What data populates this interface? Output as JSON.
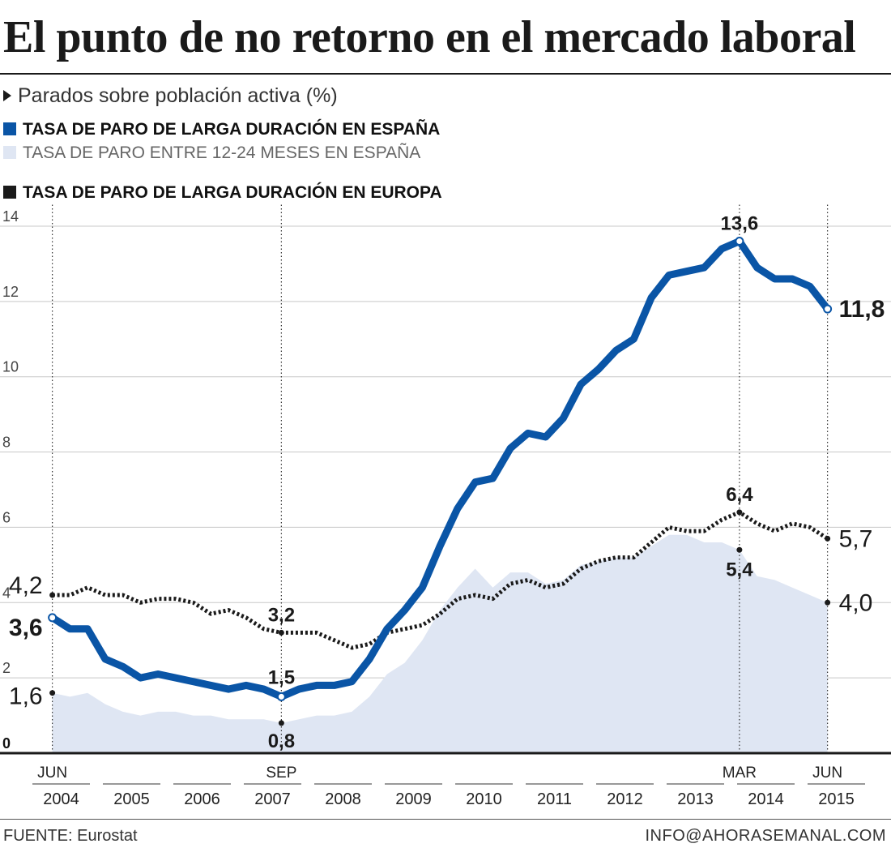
{
  "header": {
    "title": "El punto de no retorno en el mercado laboral",
    "subtitle": "Parados sobre población activa (%)"
  },
  "legend": [
    {
      "label": "TASA DE PARO DE LARGA DURACIÓN EN ESPAÑA",
      "color": "#0a55a6",
      "style": "bold"
    },
    {
      "label": "TASA DE PARO ENTRE 12-24 MESES EN ESPAÑA",
      "color": "#dfe6f3",
      "style": "light"
    },
    {
      "label": "TASA DE PARO DE LARGA DURACIÓN EN EUROPA",
      "color": "#1a1a1a",
      "style": "bold"
    }
  ],
  "footer": {
    "source": "FUENTE: Eurostat",
    "contact": "INFO@AHORASEMANAL.COM"
  },
  "chart_data": {
    "type": "line",
    "y_ticks": [
      "0",
      "2",
      "4",
      "6",
      "8",
      "10",
      "12",
      "14"
    ],
    "ylim": [
      0,
      14
    ],
    "grid": true,
    "x_range": [
      "2004-Q1",
      "2015-Q4"
    ],
    "years": [
      "2004",
      "2005",
      "2006",
      "2007",
      "2008",
      "2009",
      "2010",
      "2011",
      "2012",
      "2013",
      "2014",
      "2015"
    ],
    "month_markers": [
      {
        "label": "JUN",
        "x": "2004-Q2"
      },
      {
        "label": "SEP",
        "x": "2007-Q3"
      },
      {
        "label": "MAR",
        "x": "2014-Q1"
      },
      {
        "label": "JUN",
        "x": "2015-Q2"
      }
    ],
    "series": [
      {
        "key": "spain_long",
        "color": "#0a55a6",
        "style": "solid",
        "x": [
          "2004-Q2",
          "2004-Q3",
          "2004-Q4",
          "2005-Q1",
          "2005-Q2",
          "2005-Q3",
          "2005-Q4",
          "2006-Q1",
          "2006-Q2",
          "2006-Q3",
          "2006-Q4",
          "2007-Q1",
          "2007-Q2",
          "2007-Q3",
          "2007-Q4",
          "2008-Q1",
          "2008-Q2",
          "2008-Q3",
          "2008-Q4",
          "2009-Q1",
          "2009-Q2",
          "2009-Q3",
          "2009-Q4",
          "2010-Q1",
          "2010-Q2",
          "2010-Q3",
          "2010-Q4",
          "2011-Q1",
          "2011-Q2",
          "2011-Q3",
          "2011-Q4",
          "2012-Q1",
          "2012-Q2",
          "2012-Q3",
          "2012-Q4",
          "2013-Q1",
          "2013-Q2",
          "2013-Q3",
          "2013-Q4",
          "2014-Q1",
          "2014-Q2",
          "2014-Q3",
          "2014-Q4",
          "2015-Q1",
          "2015-Q2"
        ],
        "values": [
          3.6,
          3.3,
          3.3,
          2.5,
          2.3,
          2.0,
          2.1,
          2.0,
          1.9,
          1.8,
          1.7,
          1.8,
          1.7,
          1.5,
          1.7,
          1.8,
          1.8,
          1.9,
          2.5,
          3.3,
          3.8,
          4.4,
          5.5,
          6.5,
          7.2,
          7.3,
          8.1,
          8.5,
          8.4,
          8.9,
          9.8,
          10.2,
          10.7,
          11.0,
          12.1,
          12.7,
          12.8,
          12.9,
          13.4,
          13.6,
          12.9,
          12.6,
          12.6,
          12.4,
          11.8
        ]
      },
      {
        "key": "spain_12_24",
        "color": "#dfe6f3",
        "style": "area",
        "x": [
          "2004-Q2",
          "2004-Q3",
          "2004-Q4",
          "2005-Q1",
          "2005-Q2",
          "2005-Q3",
          "2005-Q4",
          "2006-Q1",
          "2006-Q2",
          "2006-Q3",
          "2006-Q4",
          "2007-Q1",
          "2007-Q2",
          "2007-Q3",
          "2007-Q4",
          "2008-Q1",
          "2008-Q2",
          "2008-Q3",
          "2008-Q4",
          "2009-Q1",
          "2009-Q2",
          "2009-Q3",
          "2009-Q4",
          "2010-Q1",
          "2010-Q2",
          "2010-Q3",
          "2010-Q4",
          "2011-Q1",
          "2011-Q2",
          "2011-Q3",
          "2011-Q4",
          "2012-Q1",
          "2012-Q2",
          "2012-Q3",
          "2012-Q4",
          "2013-Q1",
          "2013-Q2",
          "2013-Q3",
          "2013-Q4",
          "2014-Q1",
          "2014-Q2",
          "2014-Q3",
          "2014-Q4",
          "2015-Q1",
          "2015-Q2"
        ],
        "values": [
          1.6,
          1.5,
          1.6,
          1.3,
          1.1,
          1.0,
          1.1,
          1.1,
          1.0,
          1.0,
          0.9,
          0.9,
          0.9,
          0.8,
          0.9,
          1.0,
          1.0,
          1.1,
          1.5,
          2.1,
          2.4,
          3.0,
          3.8,
          4.4,
          4.9,
          4.4,
          4.8,
          4.8,
          4.5,
          4.6,
          5.0,
          5.1,
          5.2,
          5.2,
          5.5,
          5.8,
          5.8,
          5.6,
          5.6,
          5.4,
          4.7,
          4.6,
          4.4,
          4.2,
          4.0
        ]
      },
      {
        "key": "europe_long",
        "color": "#1a1a1a",
        "style": "dotted",
        "x": [
          "2004-Q2",
          "2004-Q3",
          "2004-Q4",
          "2005-Q1",
          "2005-Q2",
          "2005-Q3",
          "2005-Q4",
          "2006-Q1",
          "2006-Q2",
          "2006-Q3",
          "2006-Q4",
          "2007-Q1",
          "2007-Q2",
          "2007-Q3",
          "2007-Q4",
          "2008-Q1",
          "2008-Q2",
          "2008-Q3",
          "2008-Q4",
          "2009-Q1",
          "2009-Q2",
          "2009-Q3",
          "2009-Q4",
          "2010-Q1",
          "2010-Q2",
          "2010-Q3",
          "2010-Q4",
          "2011-Q1",
          "2011-Q2",
          "2011-Q3",
          "2011-Q4",
          "2012-Q1",
          "2012-Q2",
          "2012-Q3",
          "2012-Q4",
          "2013-Q1",
          "2013-Q2",
          "2013-Q3",
          "2013-Q4",
          "2014-Q1",
          "2014-Q2",
          "2014-Q3",
          "2014-Q4",
          "2015-Q1",
          "2015-Q2"
        ],
        "values": [
          4.2,
          4.2,
          4.4,
          4.2,
          4.2,
          4.0,
          4.1,
          4.1,
          4.0,
          3.7,
          3.8,
          3.6,
          3.3,
          3.2,
          3.2,
          3.2,
          3.0,
          2.8,
          2.9,
          3.2,
          3.3,
          3.4,
          3.7,
          4.1,
          4.2,
          4.1,
          4.5,
          4.6,
          4.4,
          4.5,
          4.9,
          5.1,
          5.2,
          5.2,
          5.6,
          6.0,
          5.9,
          5.9,
          6.2,
          6.4,
          6.1,
          5.9,
          6.1,
          6.0,
          5.7
        ]
      }
    ],
    "annotations": [
      {
        "x": "2004-Q2",
        "series": "europe_long",
        "value": 4.2,
        "text": "4,2",
        "weight": "normal",
        "size": 30,
        "anchor": "end",
        "dx": -12,
        "dy": -2
      },
      {
        "x": "2004-Q2",
        "series": "spain_long",
        "value": 3.6,
        "text": "3,6",
        "weight": "bold",
        "size": 30,
        "anchor": "end",
        "dx": -12,
        "dy": 22
      },
      {
        "x": "2004-Q2",
        "series": "spain_12_24",
        "value": 1.6,
        "text": "1,6",
        "weight": "normal",
        "size": 30,
        "anchor": "end",
        "dx": -12,
        "dy": 14
      },
      {
        "x": "2007-Q3",
        "series": "europe_long",
        "value": 3.2,
        "text": "3,2",
        "weight": "bold",
        "size": 24,
        "anchor": "middle",
        "dx": 0,
        "dy": -14
      },
      {
        "x": "2007-Q3",
        "series": "spain_long",
        "value": 1.5,
        "text": "1,5",
        "weight": "bold",
        "size": 24,
        "anchor": "middle",
        "dx": 0,
        "dy": -16
      },
      {
        "x": "2007-Q3",
        "series": "spain_12_24",
        "value": 0.8,
        "text": "0,8",
        "weight": "bold",
        "size": 24,
        "anchor": "middle",
        "dx": 0,
        "dy": 30
      },
      {
        "x": "2014-Q1",
        "series": "spain_long",
        "value": 13.6,
        "text": "13,6",
        "weight": "bold",
        "size": 24,
        "anchor": "middle",
        "dx": 0,
        "dy": -14
      },
      {
        "x": "2014-Q1",
        "series": "europe_long",
        "value": 6.4,
        "text": "6,4",
        "weight": "bold",
        "size": 24,
        "anchor": "middle",
        "dx": 0,
        "dy": -14
      },
      {
        "x": "2014-Q1",
        "series": "spain_12_24",
        "value": 5.4,
        "text": "5,4",
        "weight": "bold",
        "size": 24,
        "anchor": "middle",
        "dx": 0,
        "dy": 32
      },
      {
        "x": "2015-Q2",
        "series": "spain_long",
        "value": 11.8,
        "text": "11,8",
        "weight": "bold",
        "size": 30,
        "anchor": "start",
        "dx": 14,
        "dy": 10
      },
      {
        "x": "2015-Q2",
        "series": "europe_long",
        "value": 5.7,
        "text": "5,7",
        "weight": "normal",
        "size": 30,
        "anchor": "start",
        "dx": 14,
        "dy": 10
      },
      {
        "x": "2015-Q2",
        "series": "spain_12_24",
        "value": 4.0,
        "text": "4,0",
        "weight": "normal",
        "size": 30,
        "anchor": "start",
        "dx": 14,
        "dy": 10
      }
    ]
  }
}
